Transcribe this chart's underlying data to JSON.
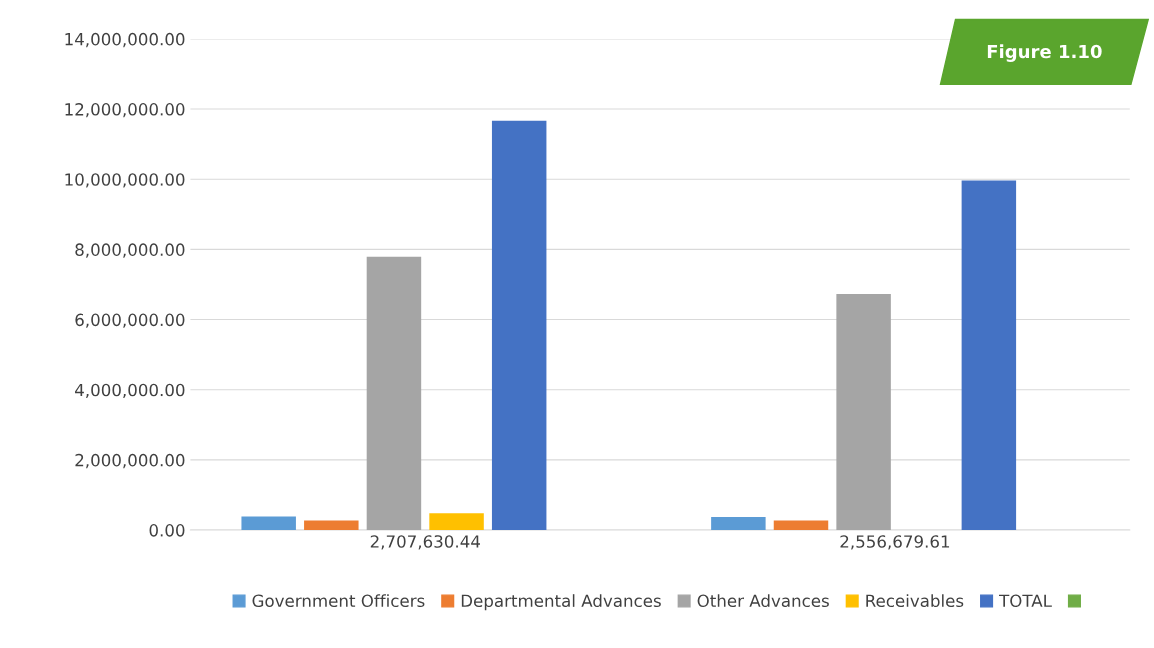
{
  "chart_data": {
    "type": "bar",
    "categories": [
      "2,707,630.44",
      "2,556,679.61"
    ],
    "series": [
      {
        "name": "Government Officers",
        "color": "#5b9bd5",
        "values": [
          390000,
          370000
        ]
      },
      {
        "name": "Departmental Advances",
        "color": "#ed7d31",
        "values": [
          270000,
          270000
        ]
      },
      {
        "name": "Other Advances",
        "color": "#a5a5a5",
        "values": [
          7790000,
          6730000
        ]
      },
      {
        "name": "Receivables",
        "color": "#ffc000",
        "values": [
          480000,
          null
        ]
      },
      {
        "name": "TOTAL",
        "color": "#4472c4",
        "values": [
          11670000,
          9960000
        ]
      },
      {
        "color": "#70ad47",
        "values": [
          null,
          null
        ]
      }
    ],
    "ylim": [
      0,
      14000000
    ],
    "yticks": [
      {
        "value": 0,
        "label": "0.00"
      },
      {
        "value": 2000000,
        "label": "2,000,000.00"
      },
      {
        "value": 4000000,
        "label": "4,000,000.00"
      },
      {
        "value": 6000000,
        "label": "6,000,000.00"
      },
      {
        "value": 8000000,
        "label": "8,000,000.00"
      },
      {
        "value": 10000000,
        "label": "10,000,000.00"
      },
      {
        "value": 12000000,
        "label": "12,000,000.00"
      },
      {
        "value": 14000000,
        "label": "14,000,000.00"
      }
    ],
    "grid": "y",
    "legend": "bottom",
    "annotations": [
      "Figure 1.10"
    ]
  }
}
